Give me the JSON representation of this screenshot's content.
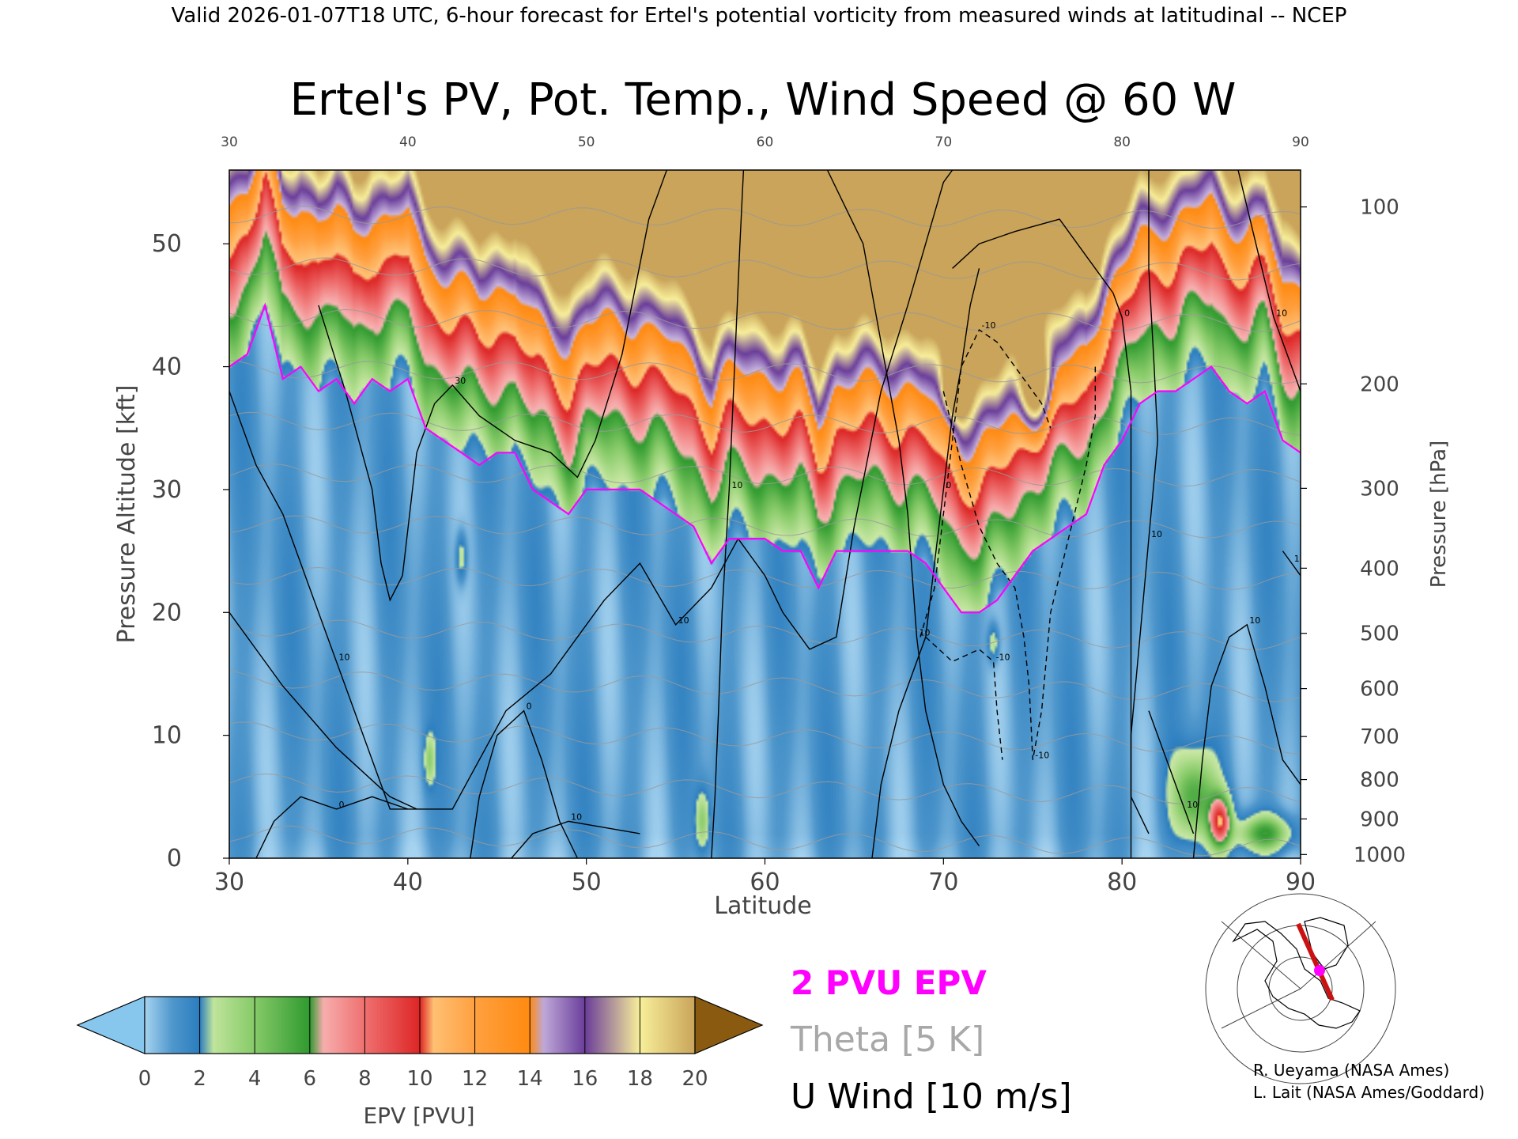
{
  "header_text": "Valid 2026-01-07T18 UTC, 6-hour forecast for Ertel's potential vorticity from measured winds at latitudinal -- NCEP",
  "chart_data": {
    "type": "heatmap",
    "title": "Ertel's PV, Pot. Temp., Wind Speed @ 60 W",
    "xlabel": "Latitude",
    "ylabel": "Pressure Altitude [kft]",
    "ylabel_right": "Pressure [hPa]",
    "xlim": [
      30,
      90
    ],
    "ylim": [
      0,
      56
    ],
    "x_ticks": [
      30,
      40,
      50,
      60,
      70,
      80,
      90
    ],
    "y_ticks": [
      0,
      10,
      20,
      30,
      40,
      50
    ],
    "pressure_ticks": [
      {
        "label": "100",
        "kft": 53.0
      },
      {
        "label": "200",
        "kft": 38.6
      },
      {
        "label": "300",
        "kft": 30.1
      },
      {
        "label": "400",
        "kft": 23.6
      },
      {
        "label": "500",
        "kft": 18.3
      },
      {
        "label": "600",
        "kft": 13.8
      },
      {
        "label": "700",
        "kft": 9.9
      },
      {
        "label": "800",
        "kft": 6.4
      },
      {
        "label": "900",
        "kft": 3.2
      },
      {
        "label": "1000",
        "kft": 0.3
      }
    ],
    "colorbar": {
      "label": "EPV [PVU]",
      "ticks": [
        0,
        2,
        4,
        6,
        8,
        10,
        12,
        14,
        16,
        18,
        20
      ],
      "colors": [
        "#87c7ee",
        "#2a7fc2",
        "#a7db88",
        "#3aa33a",
        "#f59c9c",
        "#e23030",
        "#ffb35e",
        "#ff8a10",
        "#b39ddb",
        "#6a3d9a",
        "#f8ef9a",
        "#8a5a10"
      ]
    },
    "epv_stops": [
      {
        "v": 0,
        "c": "#a6d3f0"
      },
      {
        "v": 1,
        "c": "#4f97cc"
      },
      {
        "v": 2,
        "c": "#2b7dbf"
      },
      {
        "v": 2.2,
        "c": "#cbe9a6"
      },
      {
        "v": 4,
        "c": "#86ca68"
      },
      {
        "v": 6,
        "c": "#2f9a2f"
      },
      {
        "v": 6.3,
        "c": "#f8b5b5"
      },
      {
        "v": 8,
        "c": "#ef7070"
      },
      {
        "v": 10,
        "c": "#dd2525"
      },
      {
        "v": 10.3,
        "c": "#ffc47a"
      },
      {
        "v": 12,
        "c": "#ffa040"
      },
      {
        "v": 14,
        "c": "#ff8a10"
      },
      {
        "v": 14.3,
        "c": "#c9b6e0"
      },
      {
        "v": 16,
        "c": "#6a3d9a"
      },
      {
        "v": 18,
        "c": "#f8ef9a"
      },
      {
        "v": 20,
        "c": "#c9a45a"
      }
    ],
    "tropopause_2pvu_kft": [
      40,
      41,
      45,
      39,
      40,
      38,
      39,
      37,
      39,
      38,
      39,
      35,
      34,
      33,
      32,
      33,
      33,
      30,
      29,
      28,
      30,
      30,
      30,
      30,
      29,
      28,
      27,
      24,
      26,
      26,
      26,
      25,
      25,
      22,
      25,
      25,
      25,
      25,
      25,
      24,
      22,
      20,
      20,
      21,
      23,
      25,
      26,
      27,
      28,
      32,
      34,
      37,
      38,
      38,
      39,
      40,
      38,
      37,
      38,
      34,
      33
    ],
    "pv_blobs": [
      {
        "lat": 70.7,
        "kft": 38.5,
        "amp": 14,
        "wx": 0.6,
        "wy": 2.0
      },
      {
        "lat": 75.2,
        "kft": 38.5,
        "amp": 9,
        "wx": 0.9,
        "wy": 3.5
      },
      {
        "lat": 73.4,
        "kft": 44.5,
        "amp": 14,
        "wx": 0.5,
        "wy": 1.5
      },
      {
        "lat": 84.0,
        "kft": 5.0,
        "amp": 4.5,
        "wx": 1.2,
        "wy": 3.5
      },
      {
        "lat": 85.5,
        "kft": 3.0,
        "amp": 8,
        "wx": 0.6,
        "wy": 2.0
      },
      {
        "lat": 88.0,
        "kft": 2.0,
        "amp": 5,
        "wx": 1.5,
        "wy": 1.5
      },
      {
        "lat": 41.2,
        "kft": 8.0,
        "amp": 2.5,
        "wx": 0.3,
        "wy": 2.0
      },
      {
        "lat": 43.0,
        "kft": 24.5,
        "amp": 2.5,
        "wx": 0.3,
        "wy": 2.0
      },
      {
        "lat": 56.5,
        "kft": 3.0,
        "amp": 3,
        "wx": 0.4,
        "wy": 2.5
      },
      {
        "lat": 72.8,
        "kft": 17.5,
        "amp": 2.5,
        "wx": 0.3,
        "wy": 1.5
      }
    ],
    "theta_levels": [
      280,
      290,
      300,
      310,
      320,
      330,
      340,
      350,
      360,
      370,
      380,
      390,
      400
    ],
    "wind_contours": [
      {
        "label": "30",
        "dashed": false,
        "points": [
          [
            35,
            45
          ],
          [
            36.5,
            38
          ],
          [
            38,
            30
          ],
          [
            38.5,
            24
          ],
          [
            39,
            21
          ],
          [
            39.7,
            23
          ],
          [
            40.5,
            33
          ],
          [
            41.5,
            37
          ],
          [
            42.5,
            38.5
          ],
          [
            44,
            36
          ],
          [
            46,
            34
          ],
          [
            48,
            33
          ],
          [
            49.5,
            31
          ],
          [
            50.5,
            34
          ],
          [
            52,
            41
          ],
          [
            53.5,
            52
          ],
          [
            54.5,
            56
          ]
        ]
      },
      {
        "label": "10",
        "dashed": false,
        "points": [
          [
            30,
            20
          ],
          [
            33,
            14
          ],
          [
            36,
            9
          ],
          [
            39,
            5
          ],
          [
            40.5,
            4
          ],
          [
            42.5,
            4
          ],
          [
            44,
            8
          ],
          [
            45.5,
            12
          ],
          [
            48,
            15
          ],
          [
            51,
            21
          ],
          [
            53,
            24
          ],
          [
            55,
            19
          ],
          [
            57,
            22
          ],
          [
            58.5,
            26
          ],
          [
            60,
            23
          ],
          [
            61,
            20
          ],
          [
            62.5,
            17
          ],
          [
            64,
            18
          ],
          [
            65,
            27
          ],
          [
            66.5,
            38
          ],
          [
            68,
            45
          ],
          [
            70,
            55
          ],
          [
            70.5,
            56
          ]
        ]
      },
      {
        "label": "10",
        "dashed": false,
        "points": [
          [
            30,
            38
          ],
          [
            31.5,
            32
          ],
          [
            33,
            28
          ],
          [
            34.5,
            22
          ],
          [
            36,
            16
          ],
          [
            37.5,
            10
          ],
          [
            39,
            4
          ],
          [
            40.5,
            4
          ]
        ]
      },
      {
        "label": "0",
        "dashed": false,
        "points": [
          [
            31.5,
            0
          ],
          [
            32.5,
            3
          ],
          [
            34,
            5
          ],
          [
            36,
            4
          ],
          [
            38,
            5
          ],
          [
            40,
            4
          ]
        ]
      },
      {
        "label": "0",
        "dashed": false,
        "points": [
          [
            43.5,
            0
          ],
          [
            44,
            5
          ],
          [
            45,
            10
          ],
          [
            46.5,
            12
          ],
          [
            47.5,
            8
          ],
          [
            48.5,
            3
          ],
          [
            49.5,
            0
          ]
        ]
      },
      {
        "label": "10",
        "dashed": false,
        "points": [
          [
            45.8,
            0
          ],
          [
            47,
            2
          ],
          [
            49,
            3
          ],
          [
            51,
            2.5
          ],
          [
            53,
            2
          ]
        ]
      },
      {
        "label": "10",
        "dashed": false,
        "points": [
          [
            57,
            0
          ],
          [
            57.2,
            5
          ],
          [
            57.4,
            12
          ],
          [
            57.6,
            20
          ],
          [
            58,
            30
          ],
          [
            58.3,
            40
          ],
          [
            58.6,
            50
          ],
          [
            58.8,
            56
          ]
        ]
      },
      {
        "label": "10",
        "dashed": false,
        "points": [
          [
            63.5,
            56
          ],
          [
            65.5,
            50
          ],
          [
            66.5,
            42
          ],
          [
            67.5,
            34
          ],
          [
            68,
            28
          ],
          [
            68.5,
            18
          ],
          [
            69,
            12
          ],
          [
            70,
            6
          ],
          [
            71,
            3
          ],
          [
            72,
            1
          ]
        ]
      },
      {
        "label": "0",
        "dashed": false,
        "points": [
          [
            66,
            0
          ],
          [
            66.5,
            6
          ],
          [
            67.5,
            12
          ],
          [
            69,
            18
          ],
          [
            69.5,
            24
          ],
          [
            70,
            30
          ],
          [
            70.5,
            36
          ],
          [
            71,
            40
          ],
          [
            71.5,
            45
          ],
          [
            72,
            48
          ]
        ]
      },
      {
        "label": "0",
        "dashed": false,
        "points": [
          [
            70.5,
            48
          ],
          [
            72,
            50
          ],
          [
            74,
            51
          ],
          [
            76.5,
            52
          ],
          [
            78,
            49
          ],
          [
            79.5,
            46
          ],
          [
            80,
            44
          ],
          [
            80.5,
            38
          ],
          [
            80.5,
            30
          ],
          [
            80.5,
            20
          ],
          [
            80.5,
            12
          ],
          [
            80.5,
            4
          ],
          [
            80.5,
            0
          ]
        ]
      },
      {
        "label": "10",
        "dashed": false,
        "points": [
          [
            81.5,
            56
          ],
          [
            81.5,
            48
          ],
          [
            81.8,
            40
          ],
          [
            82,
            34
          ],
          [
            81.5,
            26
          ],
          [
            81,
            18
          ],
          [
            80.5,
            10
          ],
          [
            80.5,
            5
          ],
          [
            81.5,
            2
          ]
        ]
      },
      {
        "label": "10",
        "dashed": false,
        "points": [
          [
            81.5,
            12
          ],
          [
            82.5,
            8
          ],
          [
            83.5,
            4
          ],
          [
            84,
            2
          ]
        ]
      },
      {
        "label": "10",
        "dashed": false,
        "points": [
          [
            84,
            0
          ],
          [
            84.5,
            8
          ],
          [
            85,
            14
          ],
          [
            86,
            18
          ],
          [
            87,
            19
          ],
          [
            88,
            14
          ],
          [
            89,
            8
          ],
          [
            90,
            6
          ]
        ]
      },
      {
        "label": "10",
        "dashed": false,
        "points": [
          [
            86.5,
            56
          ],
          [
            87.5,
            50
          ],
          [
            88.5,
            44
          ],
          [
            89.5,
            40
          ],
          [
            90,
            38
          ]
        ]
      },
      {
        "label": "10",
        "dashed": false,
        "points": [
          [
            89,
            25
          ],
          [
            89.5,
            24
          ],
          [
            90,
            23
          ]
        ]
      },
      {
        "label": "-10",
        "dashed": true,
        "points": [
          [
            68.7,
            18
          ],
          [
            69.5,
            22
          ],
          [
            70,
            28
          ],
          [
            70.5,
            34
          ],
          [
            71,
            40
          ],
          [
            72,
            43
          ],
          [
            73,
            42
          ],
          [
            74.5,
            39
          ],
          [
            75.5,
            37
          ],
          [
            76,
            35
          ]
        ]
      },
      {
        "label": "-10",
        "dashed": true,
        "points": [
          [
            70,
            38
          ],
          [
            71,
            32
          ],
          [
            72,
            27
          ],
          [
            73,
            24
          ],
          [
            74,
            22
          ],
          [
            74.5,
            18
          ],
          [
            74.8,
            14
          ],
          [
            75,
            8
          ],
          [
            75.5,
            12
          ],
          [
            76,
            20
          ],
          [
            77,
            26
          ],
          [
            78,
            32
          ],
          [
            78.5,
            36
          ],
          [
            78.5,
            40
          ]
        ]
      },
      {
        "label": "-10",
        "dashed": true,
        "points": [
          [
            69,
            18
          ],
          [
            70.5,
            16
          ],
          [
            72,
            17
          ],
          [
            72.8,
            16
          ],
          [
            73,
            12
          ],
          [
            73.3,
            8
          ]
        ]
      }
    ],
    "legend": [
      {
        "label": "2 PVU EPV",
        "color": "#ff00ff"
      },
      {
        "label": "Theta [5 K]",
        "color": "#a8a8a8"
      },
      {
        "label": "U Wind [10 m/s]",
        "color": "#000000"
      }
    ]
  },
  "credits": [
    "R. Ueyama (NASA Ames)",
    "L. Lait (NASA Ames/Goddard)"
  ]
}
